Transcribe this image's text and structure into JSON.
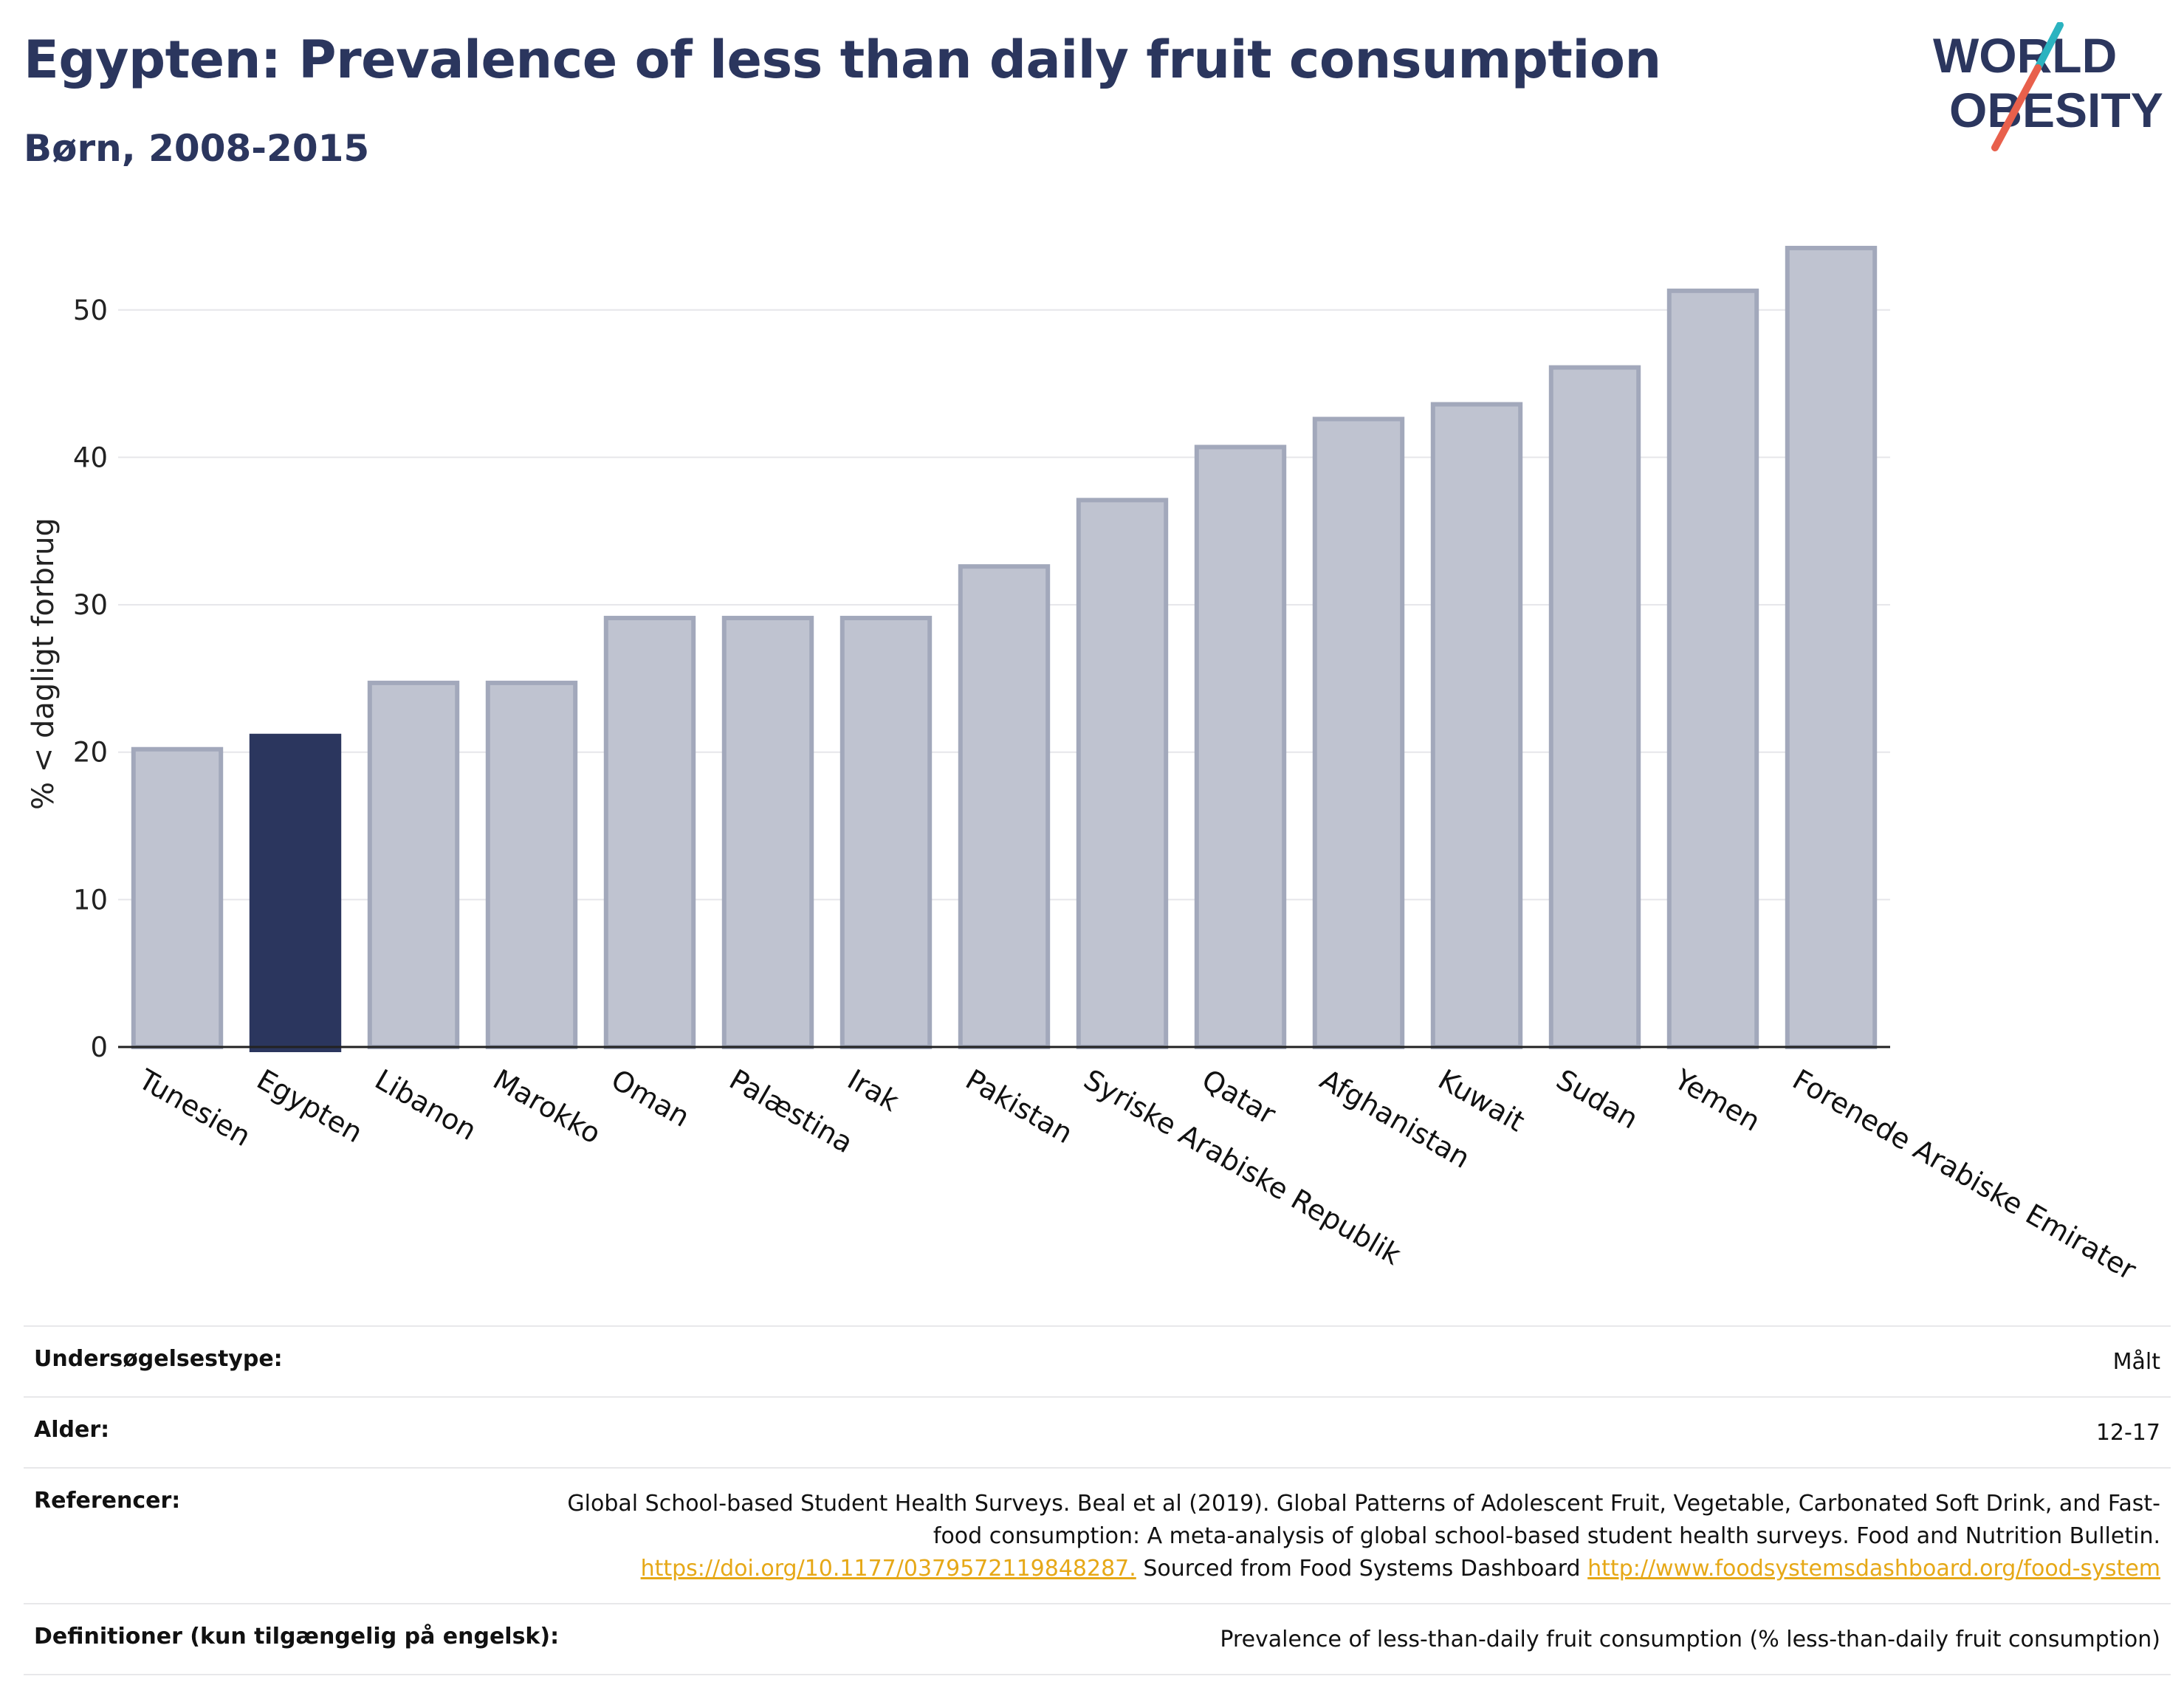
{
  "header": {
    "title": "Egypten: Prevalence of less than daily fruit consumption",
    "subtitle": "Børn, 2008-2015"
  },
  "logo": {
    "line1": "WORLD",
    "line2": "OBESITY",
    "accent_teal": "#2bb3c0",
    "accent_red": "#e8604c",
    "text_color": "#2b365e"
  },
  "colors": {
    "highlight": "#2b365e",
    "bar_fill": "#bfc3d0",
    "bar_stroke": "#a2a8bb",
    "grid": "#e6e6ea",
    "axis": "#222222"
  },
  "chart_data": {
    "type": "bar",
    "ylabel": "% < dagligt forbrug",
    "ylim": [
      0,
      56
    ],
    "yticks": [
      0,
      10,
      20,
      30,
      40,
      50
    ],
    "grid": true,
    "highlight_category": "Egypten",
    "categories": [
      "Tunesien",
      "Egypten",
      "Libanon",
      "Marokko",
      "Oman",
      "Palæstina",
      "Irak",
      "Pakistan",
      "Syriske Arabiske Republik",
      "Qatar",
      "Afghanistan",
      "Kuwait",
      "Sudan",
      "Yemen",
      "Forenede Arabiske Emirater"
    ],
    "values": [
      20.2,
      21.1,
      24.7,
      24.7,
      29.1,
      29.1,
      29.1,
      32.6,
      37.1,
      40.7,
      42.6,
      43.6,
      46.1,
      51.3,
      54.2
    ]
  },
  "meta": {
    "rows": [
      {
        "label": "Undersøgelsestype:",
        "value": "Målt"
      },
      {
        "label": "Alder:",
        "value": "12-17"
      },
      {
        "label": "Definitioner (kun tilgængelig på engelsk):",
        "value": "Prevalence of less-than-daily fruit consumption (% less-than-daily fruit consumption)"
      }
    ],
    "references": {
      "label": "Referencer:",
      "text1": "Global School-based Student Health Surveys. Beal et al (2019). Global Patterns of Adolescent Fruit, Vegetable, Carbonated Soft Drink, and Fast-food consumption: A meta-analysis of global school-based student health surveys. Food and Nutrition Bulletin.",
      "link1": "https://doi.org/10.1177/0379572119848287.",
      "text2": "Sourced from Food Systems Dashboard",
      "link2": "http://www.foodsystemsdashboard.org/food-system"
    }
  }
}
